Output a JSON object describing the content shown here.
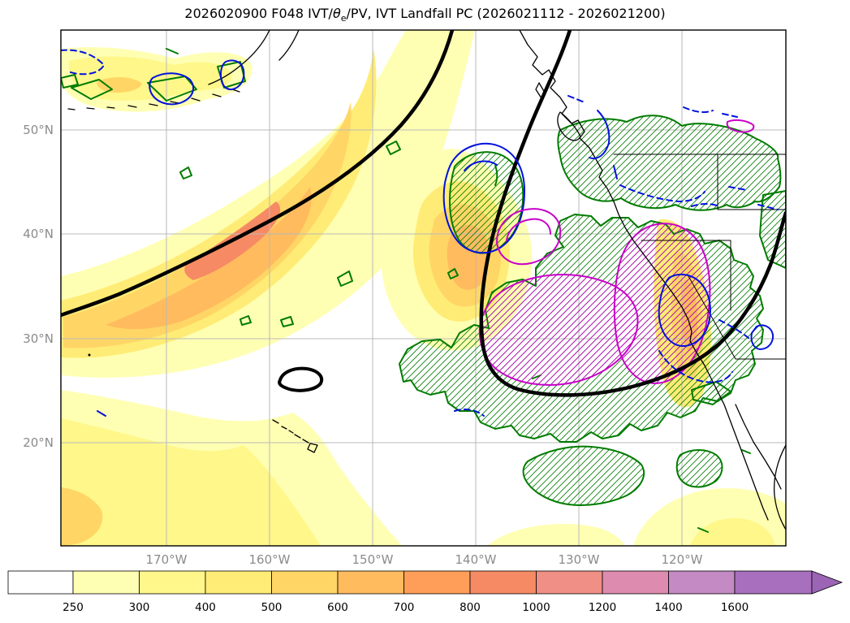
{
  "title": {
    "part1": "2026020900 F048 IVT/",
    "theta": "θ",
    "theta_sub": "e",
    "part2": "/PV, IVT Landfall PC (2026021112 - 2026021200)"
  },
  "chart_data": {
    "type": "contour-map",
    "title": "2026020900 F048 IVT/θe/PV, IVT Landfall PC (2026021112 - 2026021200)",
    "region": "North Pacific and western North America with Alaska, Hawaii and US West Coast coastlines",
    "x_tick_labels": [
      "170°W",
      "160°W",
      "150°W",
      "140°W",
      "130°W",
      "120°W"
    ],
    "y_tick_labels": [
      "50°N",
      "40°N",
      "30°N",
      "20°N"
    ],
    "grid": true,
    "fill_field": {
      "name": "IVT (shaded)",
      "levels": [
        250,
        300,
        400,
        500,
        600,
        700,
        800,
        1000,
        1200,
        1400,
        1600
      ],
      "max_shaded_region": "SW-NE plume from ~30°N,180° to ~45°N,150°W with core > 600, secondary maxima near 140°W/38°N and along California coast"
    },
    "overlays": [
      {
        "name": "thick-black-contour",
        "color": "#000000",
        "style": "solid thick",
        "note": "PV / theta-e contour sweeping from top-center to west edge and a second branch looping over the eastern Pacific"
      },
      {
        "name": "green-contours",
        "color": "#007c00",
        "style": "solid",
        "hatch": "/",
        "note": "large hatched regions over eastern Pacific and small cells near Aleutians"
      },
      {
        "name": "blue-contours",
        "color": "#0011dd",
        "styles": [
          "solid",
          "dashed"
        ],
        "note": "cells near 140°W/43°N and along the US West Coast"
      },
      {
        "name": "magenta-contours",
        "color": "#c800c8",
        "style": "solid",
        "hatch": "/",
        "note": "IVT landfall PC ovals near 130°W/30-35°N and along California"
      }
    ],
    "colorbar": {
      "orientation": "horizontal",
      "extend": "max",
      "levels": [
        250,
        300,
        400,
        500,
        600,
        700,
        800,
        1000,
        1200,
        1400,
        1600
      ],
      "colors": [
        "#ffffff",
        "#ffffb3",
        "#fff78a",
        "#ffec76",
        "#ffd666",
        "#ffbb5e",
        "#ff9e58",
        "#f68a64",
        "#ef8f85",
        "#dd8bae",
        "#c38ac3",
        "#a86fbe"
      ],
      "arrow_color": "#9b64b5"
    }
  }
}
